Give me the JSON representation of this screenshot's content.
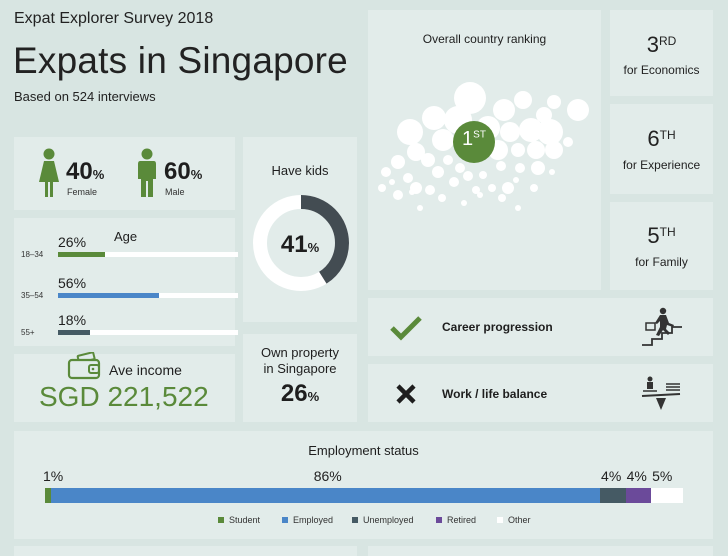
{
  "header": {
    "survey_name": "Expat Explorer Survey 2018",
    "title": "Expats in Singapore",
    "subtitle": "Based on 524 interviews"
  },
  "gender": {
    "female": {
      "value": "40",
      "unit": "%",
      "label": "Female"
    },
    "male": {
      "value": "60",
      "unit": "%",
      "label": "Male"
    },
    "colors": {
      "female": "#5a8a3a",
      "male": "#5a8a3a"
    }
  },
  "kids": {
    "title": "Have kids",
    "value": "41",
    "unit": "%",
    "fraction": 0.41
  },
  "age": {
    "title": "Age",
    "rows": [
      {
        "range": "18–34",
        "pct": "26%",
        "fraction": 0.26,
        "color": "#5a8a3a"
      },
      {
        "range": "35–54",
        "pct": "56%",
        "fraction": 0.56,
        "color": "#4a86c8"
      },
      {
        "range": "55+",
        "pct": "18%",
        "fraction": 0.18,
        "color": "#455a64"
      }
    ]
  },
  "income": {
    "title": "Ave income",
    "value": "SGD 221,522",
    "color": "#5a8a3a"
  },
  "property": {
    "title_line1": "Own property",
    "title_line2": "in Singapore",
    "value": "26",
    "unit": "%"
  },
  "overall": {
    "title": "Overall country ranking",
    "rank": "1",
    "suffix": "ST",
    "color": "#5a8a3a"
  },
  "rankings": [
    {
      "rank": "3",
      "suffix": "RD",
      "label": "for Economics"
    },
    {
      "rank": "6",
      "suffix": "TH",
      "label": "for Experience"
    },
    {
      "rank": "5",
      "suffix": "TH",
      "label": "for Family"
    }
  ],
  "factors": [
    {
      "label": "Career progression",
      "status": "check",
      "icon": "career-climb-icon"
    },
    {
      "label": "Work / life balance",
      "status": "cross",
      "icon": "balance-scale-icon"
    }
  ],
  "employment": {
    "title": "Employment status",
    "segments": [
      {
        "name": "Student",
        "pct": "1%",
        "value": 1,
        "color": "#5a8a3a"
      },
      {
        "name": "Employed",
        "pct": "86%",
        "value": 86,
        "color": "#4a86c8"
      },
      {
        "name": "Unemployed",
        "pct": "4%",
        "value": 4,
        "color": "#455a64"
      },
      {
        "name": "Retired",
        "pct": "4%",
        "value": 4,
        "color": "#6b4a9a"
      },
      {
        "name": "Other",
        "pct": "5%",
        "value": 5,
        "color": "#ffffff"
      }
    ]
  }
}
